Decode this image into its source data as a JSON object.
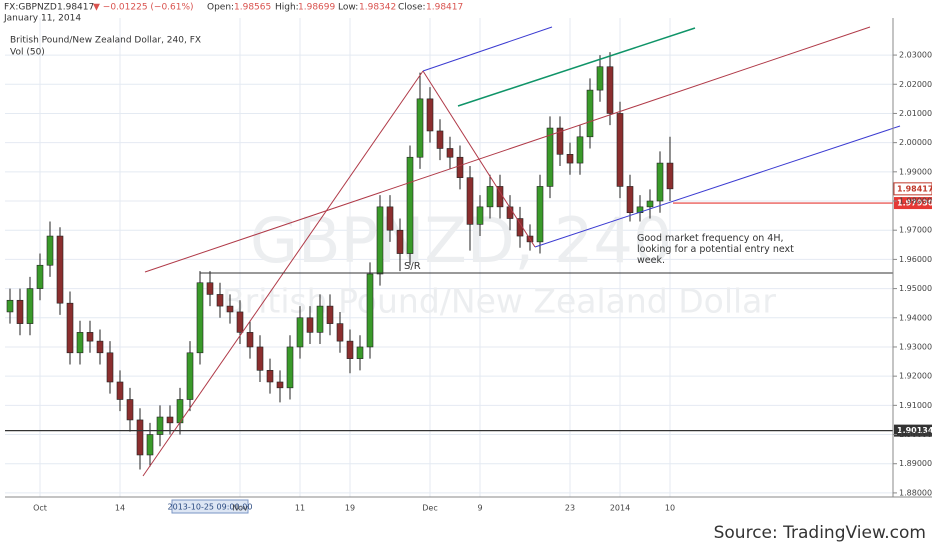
{
  "header": {
    "symbol": "FX:GBPNZD",
    "last": "1.98417",
    "change": "▼ −0.01225 (−0.61%)",
    "open_label": "Open:",
    "open": "1.98565",
    "high_label": "High:",
    "high": "1.98699",
    "low_label": "Low:",
    "low": "1.98342",
    "close_label": "Close:",
    "close": "1.98417",
    "date": "January 11, 2014"
  },
  "chart_data": {
    "type": "candlestick",
    "title": "British Pound/New Zealand Dollar, 240, FX",
    "indicator": "Vol (50)",
    "watermark": "GBPNZD, 240",
    "watermark_subtitle": "British Pound/New Zealand Dollar",
    "annotation": "Good market frequency on 4H, looking for a potential entry next week.",
    "sr_label": "S/R",
    "source": "Source: TradingView.com",
    "categories": [
      null,
      null,
      null,
      "Oct",
      null,
      null,
      null,
      null,
      null,
      null,
      null,
      "14",
      null,
      null,
      null,
      null,
      null,
      null,
      null,
      null,
      "2013-10-25 09:00:00",
      null,
      null,
      "Nov",
      null,
      null,
      null,
      null,
      null,
      "11",
      null,
      null,
      null,
      null,
      "19",
      null,
      null,
      null,
      null,
      null,
      null,
      null,
      "Dec",
      null,
      null,
      null,
      null,
      "9",
      null,
      null,
      null,
      null,
      null,
      null,
      null,
      null,
      "23",
      null,
      null,
      null,
      null,
      "2014",
      null,
      null,
      null,
      null,
      "10"
    ],
    "crosshair_category": 20,
    "open": [
      1.942,
      1.946,
      1.938,
      1.95,
      1.958,
      1.968,
      1.945,
      1.928,
      1.935,
      1.932,
      1.928,
      1.918,
      1.912,
      1.905,
      1.893,
      1.9,
      1.906,
      1.904,
      1.912,
      1.928,
      1.952,
      1.948,
      1.944,
      1.942,
      1.935,
      1.93,
      1.922,
      1.918,
      1.916,
      1.93,
      1.94,
      1.935,
      1.944,
      1.938,
      1.932,
      1.926,
      1.93,
      1.955,
      1.978,
      1.97,
      1.962,
      1.995,
      2.015,
      2.004,
      1.998,
      1.995,
      1.988,
      1.972,
      1.978,
      1.985,
      1.978,
      1.974,
      1.968,
      1.966,
      1.985,
      2.005,
      1.996,
      1.993,
      2.002,
      2.018,
      2.026,
      2.01,
      1.985,
      1.976,
      1.978,
      1.98,
      1.993
    ],
    "high": [
      1.95,
      1.95,
      1.954,
      1.962,
      1.973,
      1.971,
      1.949,
      1.939,
      1.939,
      1.936,
      1.932,
      1.922,
      1.916,
      1.909,
      1.904,
      1.91,
      1.91,
      1.916,
      1.932,
      1.956,
      1.956,
      1.952,
      1.948,
      1.946,
      1.939,
      1.934,
      1.926,
      1.922,
      1.934,
      1.944,
      1.944,
      1.948,
      1.948,
      1.942,
      1.936,
      1.934,
      1.959,
      1.982,
      1.982,
      1.974,
      1.999,
      2.024,
      2.019,
      2.008,
      2.002,
      1.999,
      1.992,
      1.982,
      1.989,
      1.989,
      1.982,
      1.978,
      1.972,
      1.989,
      2.009,
      2.009,
      2.0,
      2.006,
      2.022,
      2.03,
      2.031,
      2.014,
      1.989,
      1.982,
      1.984,
      1.997,
      2.002
    ],
    "low": [
      1.938,
      1.934,
      1.934,
      1.946,
      1.954,
      1.941,
      1.924,
      1.924,
      1.928,
      1.924,
      1.914,
      1.908,
      1.901,
      1.888,
      1.889,
      1.896,
      1.9,
      1.9,
      1.908,
      1.924,
      1.944,
      1.94,
      1.938,
      1.931,
      1.926,
      1.918,
      1.914,
      1.911,
      1.912,
      1.926,
      1.931,
      1.931,
      1.934,
      1.928,
      1.921,
      1.922,
      1.926,
      1.951,
      1.966,
      1.956,
      1.958,
      1.991,
      2.0,
      1.994,
      1.991,
      1.984,
      1.963,
      1.968,
      1.974,
      1.974,
      1.97,
      1.964,
      1.963,
      1.962,
      1.981,
      1.992,
      1.989,
      1.989,
      1.998,
      2.014,
      2.006,
      1.981,
      1.973,
      1.973,
      1.974,
      1.976,
      1.98
    ],
    "close": [
      1.946,
      1.938,
      1.95,
      1.958,
      1.968,
      1.945,
      1.928,
      1.935,
      1.932,
      1.928,
      1.918,
      1.912,
      1.905,
      1.893,
      1.9,
      1.906,
      1.904,
      1.912,
      1.928,
      1.952,
      1.948,
      1.944,
      1.942,
      1.935,
      1.93,
      1.922,
      1.918,
      1.916,
      1.93,
      1.94,
      1.935,
      1.944,
      1.938,
      1.932,
      1.926,
      1.93,
      1.955,
      1.978,
      1.97,
      1.962,
      1.995,
      2.015,
      2.004,
      1.998,
      1.995,
      1.988,
      1.972,
      1.978,
      1.985,
      1.978,
      1.974,
      1.968,
      1.966,
      1.985,
      2.005,
      1.996,
      1.993,
      2.002,
      2.018,
      2.026,
      2.01,
      1.985,
      1.976,
      1.978,
      1.98,
      1.993,
      1.98417
    ],
    "up_color": "#3a9a2a",
    "down_color": "#8b2e2e",
    "ylim": [
      1.8786,
      2.0427
    ],
    "yticks": [
      {
        "value": 1.88,
        "label": "1.88000"
      },
      {
        "value": 1.89,
        "label": "1.89000"
      },
      {
        "value": 1.9,
        "label": "1.90000"
      },
      {
        "value": 1.91,
        "label": "1.91000"
      },
      {
        "value": 1.92,
        "label": "1.92000"
      },
      {
        "value": 1.93,
        "label": "1.93000"
      },
      {
        "value": 1.94,
        "label": "1.94000"
      },
      {
        "value": 1.95,
        "label": "1.95000"
      },
      {
        "value": 1.96,
        "label": "1.96000"
      },
      {
        "value": 1.97,
        "label": "1.97000"
      },
      {
        "value": 1.98,
        "label": "1.98000"
      },
      {
        "value": 1.99,
        "label": "1.99000"
      },
      {
        "value": 2.0,
        "label": "2.00000"
      },
      {
        "value": 2.01,
        "label": "2.01000"
      },
      {
        "value": 2.02,
        "label": "2.02000"
      },
      {
        "value": 2.03,
        "label": "2.03000"
      }
    ],
    "grid": true,
    "price_lines": [
      {
        "value": 1.90134,
        "color": "#333333"
      },
      {
        "value": 1.9793,
        "label": "1.97930",
        "color": "#e53935"
      }
    ],
    "last_price": {
      "value": 1.98417,
      "color": "#c0392b"
    }
  }
}
